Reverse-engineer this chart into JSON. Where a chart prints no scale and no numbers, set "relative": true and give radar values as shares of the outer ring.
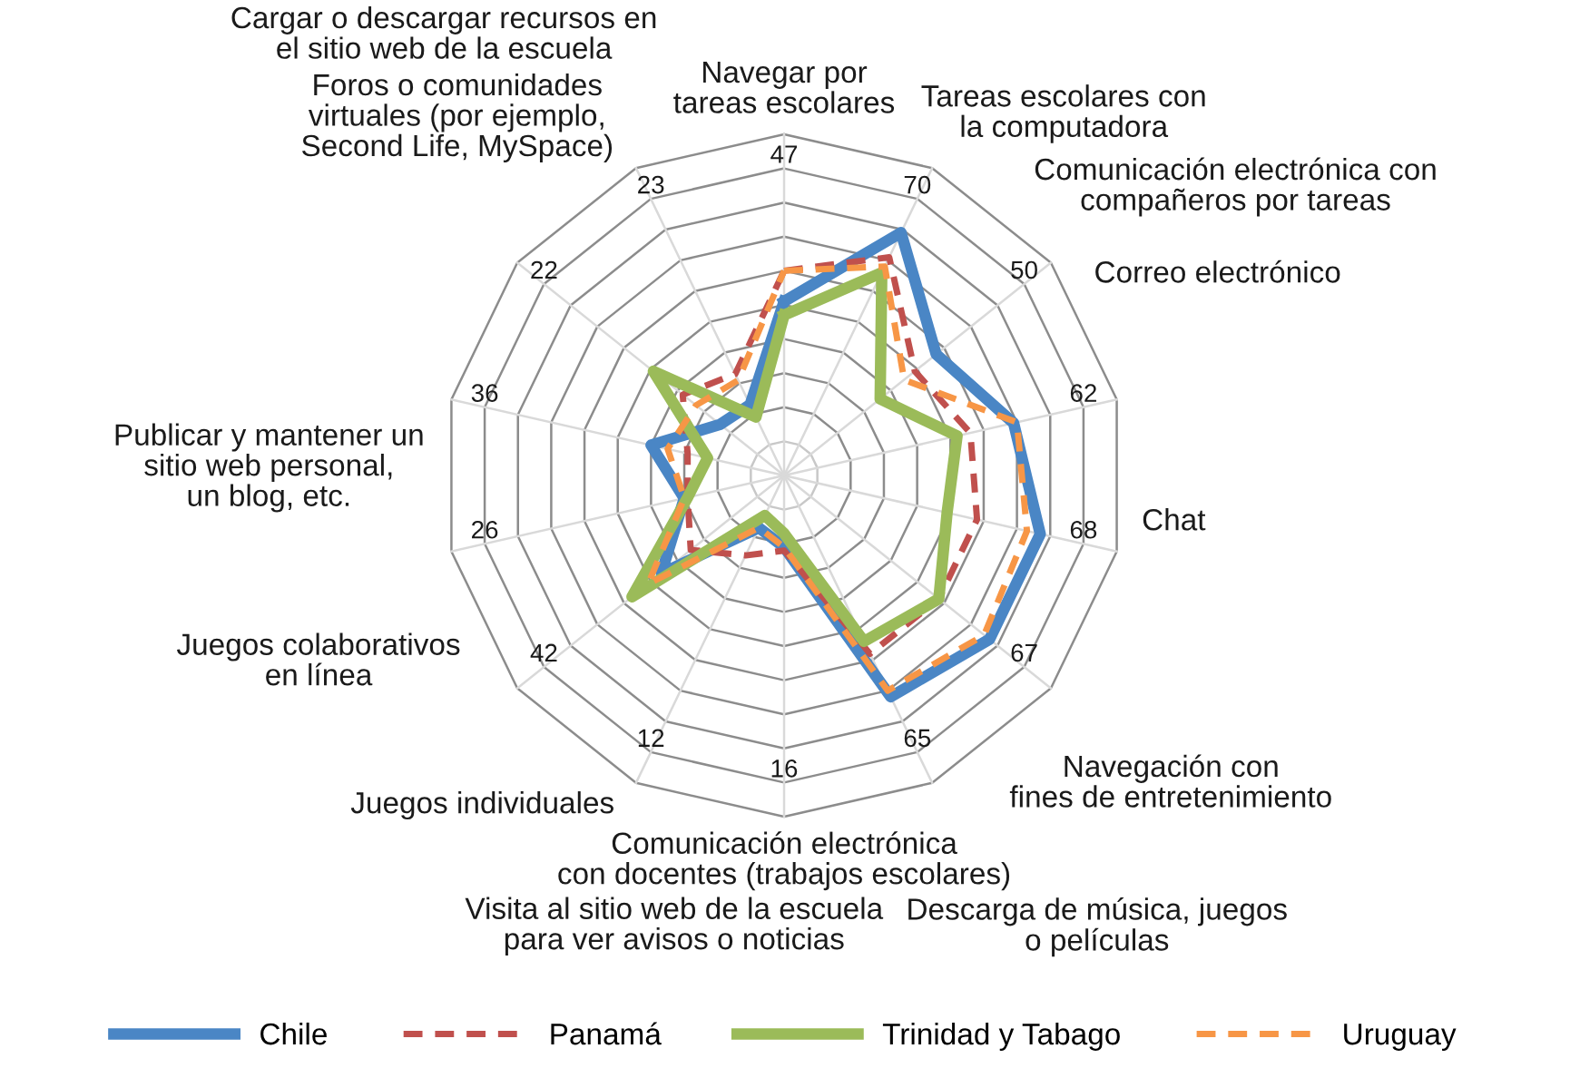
{
  "chart_data": {
    "type": "radar",
    "relative": true,
    "grid": true,
    "legend": "bottom",
    "categories": [
      "Navegar por\ntareas escolares",
      "Tareas escolares con\nla computadora",
      "Comunicación electrónica con\ncompañeros por tareas",
      "Correo electrónico",
      "Chat",
      "Navegación con\nfines de entretenimiento",
      "Descarga de música, juegos\no películas",
      "Comunicación electrónica\ncon docentes (trabajos escolares)",
      "Visita al sitio web de la escuela\npara ver avisos o noticias",
      "Juegos individuales",
      "Juegos colaborativos\nen línea",
      "Publicar y mantener un\nsitio web personal,\nun blog, etc.",
      "Foros o comunidades\nvirtuales (por ejemplo,\nSecond Life, MySpace)",
      "Cargar o descargar recursos en\nel sitio web de la escuela"
    ],
    "series": [
      {
        "name": "Chile",
        "color": "#4a86c5",
        "line_style": "solid",
        "values": [
          0.51,
          0.79,
          0.57,
          0.69,
          0.77,
          0.77,
          0.72,
          0.21,
          0.17,
          0.46,
          0.3,
          0.4,
          0.24,
          0.23
        ]
      },
      {
        "name": "Panamá",
        "color": "#c0504d",
        "line_style": "dashed",
        "values": [
          0.6,
          0.71,
          0.49,
          0.56,
          0.58,
          0.58,
          0.58,
          0.22,
          0.26,
          0.35,
          0.29,
          0.29,
          0.38,
          0.33
        ]
      },
      {
        "name": "Trinidad y Tabago",
        "color": "#9bbb59",
        "line_style": "solid",
        "values": [
          0.47,
          0.66,
          0.36,
          0.52,
          0.49,
          0.58,
          0.54,
          0.17,
          0.13,
          0.57,
          0.29,
          0.23,
          0.49,
          0.19
        ]
      },
      {
        "name": "Uruguay",
        "color": "#f79646",
        "line_style": "dashed",
        "values": [
          0.6,
          0.68,
          0.45,
          0.7,
          0.73,
          0.75,
          0.7,
          0.21,
          0.17,
          0.51,
          0.3,
          0.35,
          0.33,
          0.31
        ]
      }
    ],
    "annotations": [
      "47",
      "70",
      "50",
      "62",
      "68",
      "67",
      "65",
      "16",
      "12",
      "42",
      "26",
      "36",
      "22",
      "23"
    ]
  }
}
